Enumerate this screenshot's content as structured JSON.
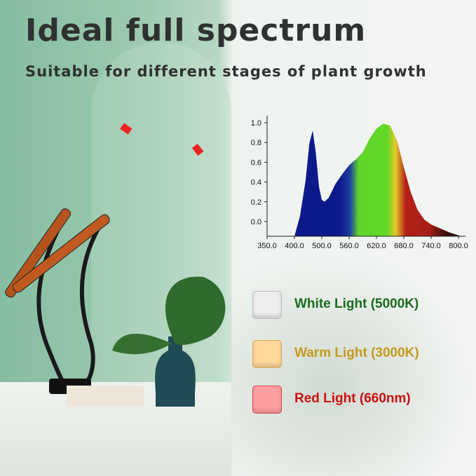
{
  "header": {
    "title": "Ideal full spectrum",
    "subtitle": "Suitable for different stages of plant growth"
  },
  "chart_data": {
    "type": "area",
    "x_tick_labels": [
      "350.0",
      "400.0",
      "500.0",
      "560.0",
      "620.0",
      "680.0",
      "740.0",
      "800.0"
    ],
    "y_tick_labels": [
      "1.0",
      "0.8",
      "0.6",
      "0.4",
      "0.2",
      "0.0"
    ],
    "ylim": [
      -0.15,
      1.05
    ],
    "points": [
      [
        400,
        -0.15
      ],
      [
        420,
        0.05
      ],
      [
        440,
        0.4
      ],
      [
        455,
        0.8
      ],
      [
        467,
        0.92
      ],
      [
        478,
        0.7
      ],
      [
        490,
        0.35
      ],
      [
        500,
        0.22
      ],
      [
        506,
        0.2
      ],
      [
        515,
        0.24
      ],
      [
        530,
        0.38
      ],
      [
        545,
        0.48
      ],
      [
        560,
        0.57
      ],
      [
        575,
        0.63
      ],
      [
        590,
        0.7
      ],
      [
        605,
        0.84
      ],
      [
        620,
        0.94
      ],
      [
        635,
        0.99
      ],
      [
        650,
        0.97
      ],
      [
        665,
        0.82
      ],
      [
        680,
        0.55
      ],
      [
        695,
        0.3
      ],
      [
        710,
        0.12
      ],
      [
        725,
        0.02
      ],
      [
        740,
        -0.03
      ],
      [
        760,
        -0.07
      ],
      [
        780,
        -0.11
      ],
      [
        800,
        -0.14
      ],
      [
        810,
        -0.15
      ]
    ],
    "gradient_colors": [
      "#0d1a8c",
      "#0d1a8c",
      "#1d3fa0",
      "#5fd52a",
      "#62d826",
      "#e6c92a",
      "#b32018",
      "#a81f17",
      "#3a0d0a",
      "#111111"
    ],
    "grid": false
  },
  "legend": [
    {
      "label": "White Light (5000K)",
      "color": "#1b6b1f",
      "swatch": "#eeeeee"
    },
    {
      "label": "Warm Light (3000K)",
      "color": "#c49a1c",
      "swatch": "#ffd89a"
    },
    {
      "label": "Red Light (660nm)",
      "color": "#cc1111",
      "swatch": "#ff9fa3"
    }
  ]
}
